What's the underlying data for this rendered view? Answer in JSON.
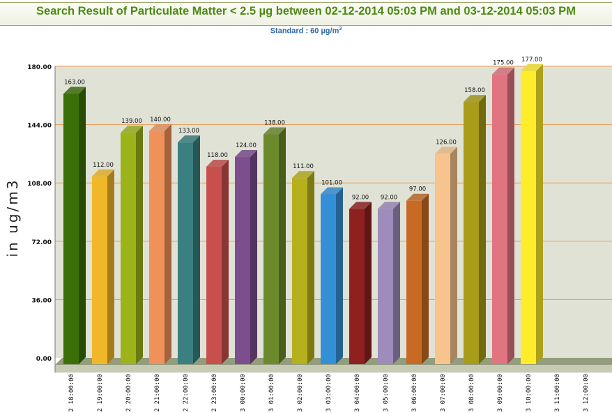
{
  "chart_data": {
    "type": "bar",
    "title": "Search Result of Particulate Matter < 2.5 µg between 02-12-2014 05:03 PM and 03-12-2014 05:03 PM",
    "subtitle_prefix": "Standard : 60 µg/m",
    "subtitle_sup": "3",
    "ylabel": "in ug/m3",
    "ylim": [
      0,
      180
    ],
    "yticks": [
      "0.00",
      "36.00",
      "72.00",
      "108.00",
      "144.00",
      "180.00"
    ],
    "categories": [
      "2 18:00:00",
      "2 19:00:00",
      "2 20:00:00",
      "2 21:00:00",
      "2 22:00:00",
      "2 23:00:00",
      "3 00:00:00",
      "3 01:00:00",
      "3 02:00:00",
      "3 03:00:00",
      "3 04:00:00",
      "3 05:00:00",
      "3 06:00:00",
      "3 07:00:00",
      "3 08:00:00",
      "3 09:00:00",
      "3 10:00:00",
      "3 11:00:00",
      "3 12:00:00"
    ],
    "values": [
      163,
      112,
      139,
      140,
      133,
      118,
      124,
      138,
      111,
      101,
      92,
      92,
      97,
      126,
      158,
      175,
      177,
      null,
      null
    ],
    "value_labels": [
      "163.00",
      "112.00",
      "139.00",
      "140.00",
      "133.00",
      "118.00",
      "124.00",
      "138.00",
      "111.00",
      "101.00",
      "92.00",
      "92.00",
      "97.00",
      "126.00",
      "158.00",
      "175.00",
      "177.00",
      "",
      ""
    ],
    "colors": [
      "#3b7008",
      "#f0b829",
      "#9cb41a",
      "#f0915a",
      "#3a8080",
      "#c8504c",
      "#7c4e8e",
      "#6b8a2c",
      "#b6b01c",
      "#3490d6",
      "#8e2020",
      "#9e8cbc",
      "#c86a24",
      "#f6c48c",
      "#a89c18",
      "#e07480",
      "#ffec2a",
      "#888888",
      "#888888"
    ],
    "plot_background": "#e1e2d6",
    "gridline_color": "#e59a52",
    "grid": true
  }
}
